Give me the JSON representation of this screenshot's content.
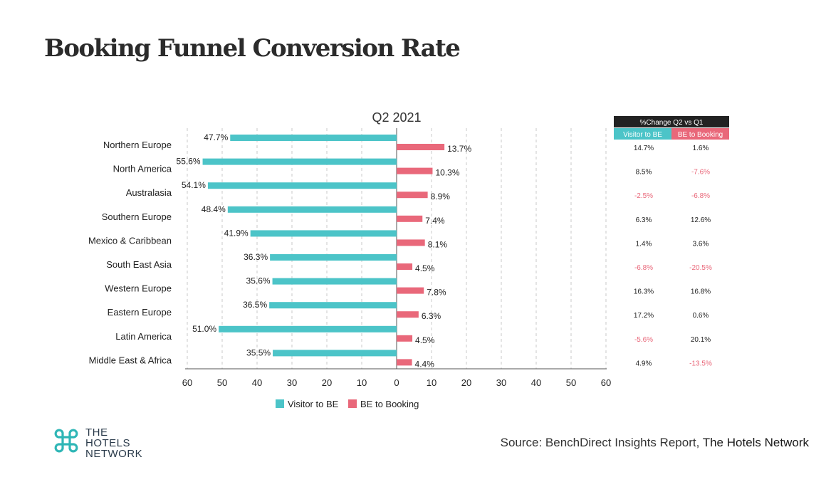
{
  "page": {
    "title": "Booking Funnel Conversion Rate",
    "source_prefix": "Source:  BenchDirect  Insights  Report,",
    "source_brand": "The Hotels Network",
    "logo_lines": [
      "THE",
      "HOTELS",
      "NETWORK"
    ]
  },
  "colors": {
    "visitor": "#4cc4c8",
    "booking": "#e9687a",
    "negative_text": "#e9687a",
    "header_bg": "#222222"
  },
  "chart_data": {
    "type": "bar",
    "orientation": "horizontal-diverging",
    "title": "Q2 2021",
    "categories": [
      "Northern Europe",
      "North America",
      "Australasia",
      "Southern Europe",
      "Mexico & Caribbean",
      "South East Asia",
      "Western Europe",
      "Eastern Europe",
      "Latin America",
      "Middle East & Africa"
    ],
    "series": [
      {
        "name": "Visitor to BE",
        "direction": "left",
        "values": [
          47.7,
          55.6,
          54.1,
          48.4,
          41.9,
          36.3,
          35.6,
          36.5,
          51.0,
          35.5
        ]
      },
      {
        "name": "BE to Booking",
        "direction": "right",
        "values": [
          13.7,
          10.3,
          8.9,
          7.4,
          8.1,
          4.5,
          7.8,
          6.3,
          4.5,
          4.4
        ]
      }
    ],
    "x_ticks": [
      "60",
      "50",
      "40",
      "30",
      "20",
      "10",
      "0",
      "10",
      "20",
      "30",
      "40",
      "50",
      "60"
    ],
    "xlim": [
      -60,
      60
    ],
    "grid": "vertical-dashed",
    "legend": "bottom"
  },
  "change_table": {
    "header": "%Change Q2 vs Q1",
    "columns": [
      "Visitor to BE",
      "BE to Booking"
    ],
    "rows": [
      [
        "14.7%",
        "1.6%"
      ],
      [
        "8.5%",
        "-7.6%"
      ],
      [
        "-2.5%",
        "-6.8%"
      ],
      [
        "6.3%",
        "12.6%"
      ],
      [
        "1.4%",
        "3.6%"
      ],
      [
        "-6.8%",
        "-20.5%"
      ],
      [
        "16.3%",
        "16.8%"
      ],
      [
        "17.2%",
        "0.6%"
      ],
      [
        "-5.6%",
        "20.1%"
      ],
      [
        "4.9%",
        "-13.5%"
      ]
    ]
  }
}
